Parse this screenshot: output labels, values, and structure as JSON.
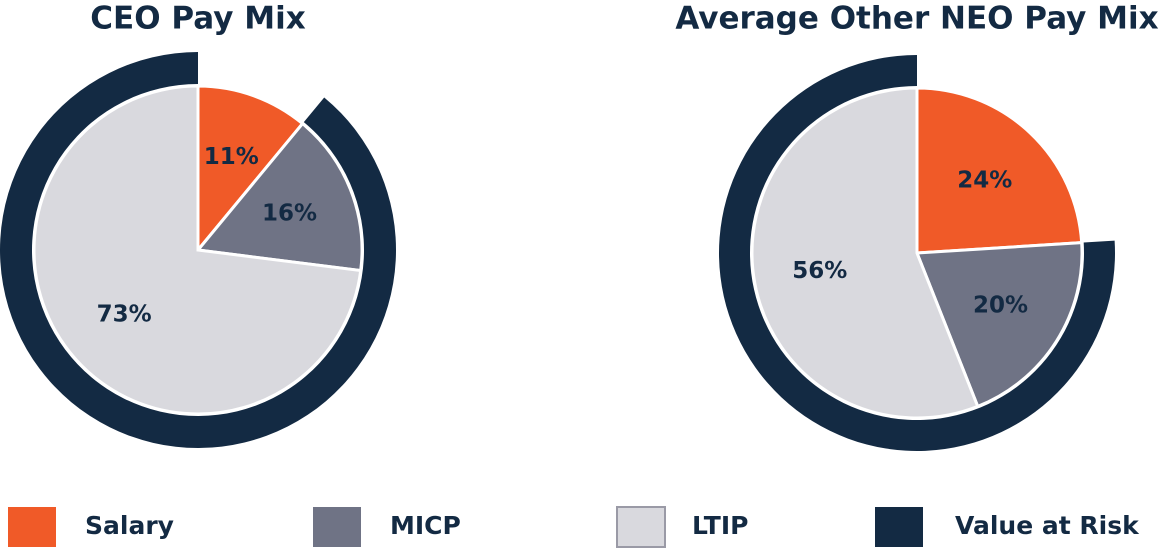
{
  "chart_data": [
    {
      "type": "pie",
      "title": "CEO Pay Mix",
      "categories": [
        "Salary",
        "MICP",
        "LTIP"
      ],
      "values": [
        11,
        16,
        73
      ],
      "value_labels": [
        "11%",
        "16%",
        "73%"
      ],
      "colors": [
        "#f05a28",
        "#6f7385",
        "#d9d9de"
      ],
      "ring": {
        "name": "Value at Risk",
        "value": 89,
        "color": "#132a43"
      }
    },
    {
      "type": "pie",
      "title": "Average Other NEO Pay Mix",
      "categories": [
        "Salary",
        "MICP",
        "LTIP"
      ],
      "values": [
        24,
        20,
        56
      ],
      "value_labels": [
        "24%",
        "20%",
        "56%"
      ],
      "colors": [
        "#f05a28",
        "#6f7385",
        "#d9d9de"
      ],
      "ring": {
        "name": "Value at Risk",
        "value": 76,
        "color": "#132a43"
      }
    }
  ]
}
